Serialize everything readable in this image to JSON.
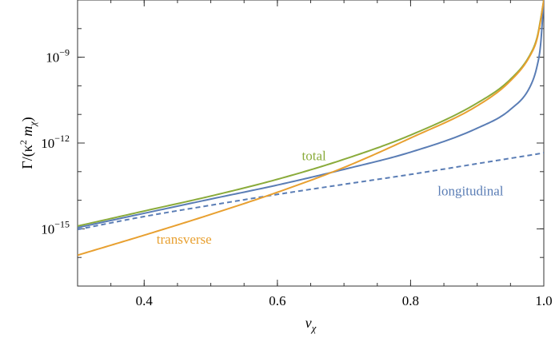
{
  "chart_data": {
    "type": "line",
    "xlabel": "v",
    "xlabel_sub": "χ",
    "ylabel_parts": [
      "Γ/(κ",
      "2",
      " m",
      "χ",
      ")"
    ],
    "x_scale": "linear",
    "y_scale": "log",
    "xlim": [
      0.3,
      1.0
    ],
    "ylim": [
      1e-17,
      1e-07
    ],
    "x_ticks": [
      {
        "value": 0.4,
        "label": "0.4"
      },
      {
        "value": 0.6,
        "label": "0.6"
      },
      {
        "value": 0.8,
        "label": "0.8"
      },
      {
        "value": 1.0,
        "label": "1.0"
      }
    ],
    "y_ticks": [
      {
        "value": 1e-09,
        "base": "10",
        "exp": "−9"
      },
      {
        "value": 1e-12,
        "base": "10",
        "exp": "−12"
      },
      {
        "value": 1e-15,
        "base": "10",
        "exp": "−15"
      }
    ],
    "legend": "inline labels",
    "series": [
      {
        "name": "total",
        "color": "#8aab3b",
        "dash": "solid",
        "label_pos": {
          "x": 0.655,
          "y": 2.5e-13
        },
        "points": [
          [
            0.3,
            1.25e-15
          ],
          [
            0.4,
            4.2e-15
          ],
          [
            0.5,
            1.4e-14
          ],
          [
            0.6,
            5.4e-14
          ],
          [
            0.7,
            2.7e-13
          ],
          [
            0.8,
            1.9e-12
          ],
          [
            0.9,
            2.5e-11
          ],
          [
            0.95,
            1.7e-10
          ],
          [
            0.98,
            1.3e-09
          ],
          [
            0.99,
            5e-09
          ],
          [
            0.995,
            2e-08
          ],
          [
            1.0,
            1e-07
          ]
        ]
      },
      {
        "name": "longitudinal",
        "color": "#5a7db5",
        "dash": "solid",
        "points": [
          [
            0.3,
            1.1e-15
          ],
          [
            0.4,
            3.5e-15
          ],
          [
            0.5,
            1.1e-14
          ],
          [
            0.6,
            3.4e-14
          ],
          [
            0.7,
            1.2e-13
          ],
          [
            0.8,
            4.8e-13
          ],
          [
            0.9,
            3.3e-12
          ],
          [
            0.95,
            1.5e-11
          ],
          [
            0.98,
            1e-10
          ],
          [
            0.99,
            5e-10
          ],
          [
            0.995,
            2.5e-09
          ],
          [
            1.0,
            1e-07
          ]
        ]
      },
      {
        "name": "",
        "color": "#5a7db5",
        "dash": "dashed",
        "points": [
          [
            0.3,
            9.5e-16
          ],
          [
            0.4,
            2.7e-15
          ],
          [
            0.5,
            6.7e-15
          ],
          [
            0.6,
            1.6e-14
          ],
          [
            0.7,
            3.6e-14
          ],
          [
            0.8,
            8e-14
          ],
          [
            0.9,
            1.9e-13
          ],
          [
            1.0,
            4.5e-13
          ]
        ]
      },
      {
        "name": "transverse",
        "color": "#e8a030",
        "dash": "solid",
        "label_pos": {
          "x": 0.46,
          "y": 3e-16
        },
        "points": [
          [
            0.3,
            1.2e-16
          ],
          [
            0.4,
            6e-16
          ],
          [
            0.5,
            3.2e-15
          ],
          [
            0.6,
            1.9e-14
          ],
          [
            0.7,
            1.4e-13
          ],
          [
            0.8,
            1.5e-12
          ],
          [
            0.9,
            2e-11
          ],
          [
            0.95,
            1.5e-10
          ],
          [
            0.98,
            1.2e-09
          ],
          [
            0.99,
            4.5e-09
          ],
          [
            0.995,
            1.8e-08
          ],
          [
            1.0,
            1e-07
          ]
        ]
      }
    ],
    "longitudinal_label_pos": {
      "x": 0.89,
      "y": 1.5e-14
    }
  }
}
